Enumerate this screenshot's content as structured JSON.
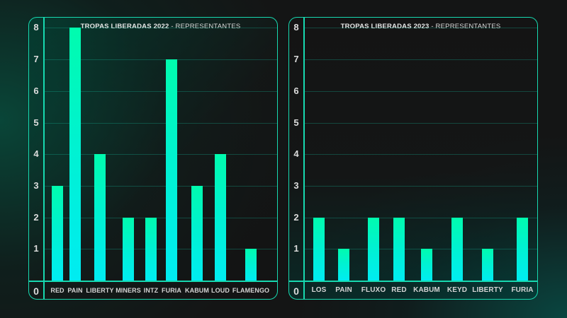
{
  "chart_data": [
    {
      "type": "bar",
      "title": "TROPAS LIBERADAS 2022 - REPRESENTANTES",
      "title_bold": "TROPAS LIBERADAS 2022",
      "title_rest": " - REPRESENTANTES",
      "categories": [
        "RED",
        "PAIN",
        "LIBERTY",
        "MINERS",
        "INTZ",
        "FURIA",
        "KABUM",
        "LOUD",
        "FLAMENGO"
      ],
      "values": [
        3,
        8,
        4,
        2,
        2,
        7,
        3,
        4,
        1
      ],
      "xlabel": "",
      "ylabel": "",
      "ylim": [
        0,
        8
      ],
      "yticks": [
        "0",
        "1",
        "2",
        "3",
        "4",
        "5",
        "6",
        "7",
        "8"
      ],
      "grid": true,
      "legend": null
    },
    {
      "type": "bar",
      "title": "TROPAS LIBERADAS 2023 - REPRESENTANTES",
      "title_bold": "TROPAS LIBERADAS 2023",
      "title_rest": " - REPRESENTANTES",
      "categories": [
        "LOS",
        "PAIN",
        "FLUXO",
        "RED",
        "KABUM",
        "KEYD",
        "LIBERTY",
        "FURIA"
      ],
      "values": [
        2,
        1,
        2,
        2,
        1,
        2,
        1,
        2
      ],
      "xlabel": "",
      "ylabel": "",
      "ylim": [
        0,
        8
      ],
      "yticks": [
        "0",
        "1",
        "2",
        "3",
        "4",
        "5",
        "6",
        "7",
        "8"
      ],
      "grid": true,
      "legend": null
    }
  ],
  "colors": {
    "bar_top": "#00fcae",
    "bar_bottom": "#00ecf2",
    "panel_border": "#17d9b0",
    "background": "#141515"
  }
}
